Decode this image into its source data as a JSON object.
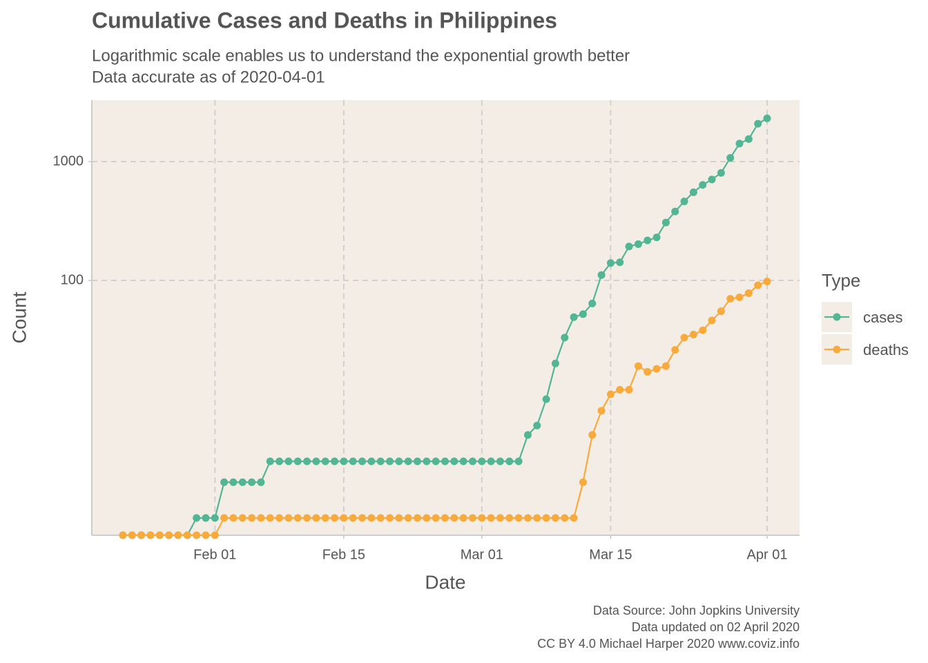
{
  "chart_data": {
    "type": "line",
    "title": "Cumulative Cases and Deaths in Philippines",
    "subtitle": [
      "Logarithmic scale enables us to understand the exponential growth better",
      "Data accurate as of 2020-04-01"
    ],
    "x_label": "Date",
    "y_label": "Count",
    "caption": [
      "Data Source: John Jopkins University",
      "Data updated on 02 April 2020",
      "CC BY 4.0 Michael Harper 2020 www.coviz.info"
    ],
    "legend_title": "Type",
    "legend_position": "right",
    "y_scale": "log",
    "grid": true,
    "ylim": [
      0.716,
      3290
    ],
    "yticks": [
      100,
      1000
    ],
    "xticks": [
      "Feb 01",
      "Feb 15",
      "Mar 01",
      "Mar 15",
      "Apr 01"
    ],
    "x": [
      "Jan 22",
      "Jan 23",
      "Jan 24",
      "Jan 25",
      "Jan 26",
      "Jan 27",
      "Jan 28",
      "Jan 29",
      "Jan 30",
      "Jan 31",
      "Feb 01",
      "Feb 02",
      "Feb 03",
      "Feb 04",
      "Feb 05",
      "Feb 06",
      "Feb 07",
      "Feb 08",
      "Feb 09",
      "Feb 10",
      "Feb 11",
      "Feb 12",
      "Feb 13",
      "Feb 14",
      "Feb 15",
      "Feb 16",
      "Feb 17",
      "Feb 18",
      "Feb 19",
      "Feb 20",
      "Feb 21",
      "Feb 22",
      "Feb 23",
      "Feb 24",
      "Feb 25",
      "Feb 26",
      "Feb 27",
      "Feb 28",
      "Feb 29",
      "Mar 01",
      "Mar 02",
      "Mar 03",
      "Mar 04",
      "Mar 05",
      "Mar 06",
      "Mar 07",
      "Mar 08",
      "Mar 09",
      "Mar 10",
      "Mar 11",
      "Mar 12",
      "Mar 13",
      "Mar 14",
      "Mar 15",
      "Mar 16",
      "Mar 17",
      "Mar 18",
      "Mar 19",
      "Mar 20",
      "Mar 21",
      "Mar 22",
      "Mar 23",
      "Mar 24",
      "Mar 25",
      "Mar 26",
      "Mar 27",
      "Mar 28",
      "Mar 29",
      "Mar 30",
      "Mar 31",
      "Apr 01"
    ],
    "series": [
      {
        "name": "cases",
        "color": "#52b594",
        "values": [
          0,
          0,
          0,
          0,
          0,
          0,
          0,
          0,
          1,
          1,
          1,
          2,
          2,
          2,
          2,
          2,
          3,
          3,
          3,
          3,
          3,
          3,
          3,
          3,
          3,
          3,
          3,
          3,
          3,
          3,
          3,
          3,
          3,
          3,
          3,
          3,
          3,
          3,
          3,
          3,
          3,
          3,
          3,
          3,
          5,
          6,
          10,
          20,
          33,
          49,
          52,
          64,
          111,
          140,
          142,
          193,
          202,
          217,
          230,
          307,
          380,
          462,
          552,
          636,
          707,
          803,
          1075,
          1418,
          1546,
          2084,
          2311
        ]
      },
      {
        "name": "deaths",
        "color": "#f9aa3c",
        "values": [
          0,
          0,
          0,
          0,
          0,
          0,
          0,
          0,
          0,
          0,
          0,
          1,
          1,
          1,
          1,
          1,
          1,
          1,
          1,
          1,
          1,
          1,
          1,
          1,
          1,
          1,
          1,
          1,
          1,
          1,
          1,
          1,
          1,
          1,
          1,
          1,
          1,
          1,
          1,
          1,
          1,
          1,
          1,
          1,
          1,
          1,
          1,
          1,
          1,
          1,
          2,
          5,
          8,
          11,
          12,
          12,
          19,
          17,
          18,
          19,
          26,
          33,
          35,
          38,
          46,
          55,
          70,
          72,
          78,
          91,
          98
        ]
      }
    ]
  }
}
